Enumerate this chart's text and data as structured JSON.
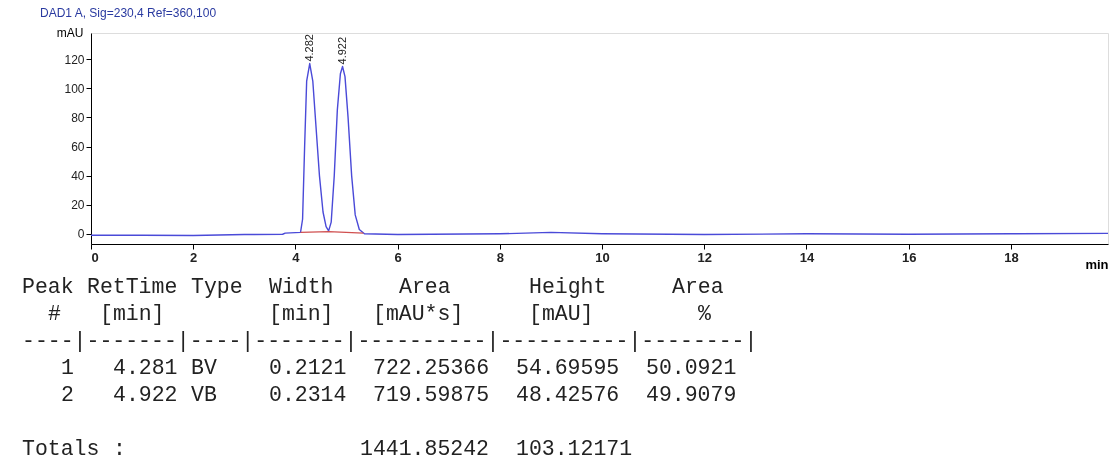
{
  "chart_data": {
    "type": "line",
    "title": "DAD1 A, Sig=230,4 Ref=360,100",
    "xlabel": "min",
    "ylabel": "mAU",
    "xlim": [
      0,
      19.9
    ],
    "xticks": [
      0,
      2,
      4,
      6,
      8,
      10,
      12,
      14,
      16,
      18
    ],
    "ylim": [
      -7,
      138
    ],
    "yticks": [
      0,
      20,
      40,
      60,
      80,
      100,
      120
    ],
    "grid": false,
    "series": [
      {
        "color": "#4a4ad8",
        "x": [
          0,
          1,
          2,
          3,
          3.75,
          3.8,
          4.1,
          4.14,
          4.18,
          4.22,
          4.28,
          4.34,
          4.4,
          4.47,
          4.54,
          4.6,
          4.65,
          4.7,
          4.76,
          4.82,
          4.88,
          4.922,
          4.97,
          5.03,
          5.1,
          5.17,
          5.25,
          5.35,
          6,
          8,
          9,
          10,
          12,
          14,
          16,
          18,
          19.9
        ],
        "values": [
          -1,
          -1,
          -1.2,
          -0.5,
          -0.3,
          0.5,
          1,
          10,
          60,
          105,
          117,
          105,
          75,
          40,
          15,
          5,
          2,
          8,
          40,
          85,
          110,
          115,
          108,
          80,
          40,
          13,
          3,
          0,
          -0.5,
          0,
          1,
          0,
          -0.5,
          0,
          -0.3,
          0,
          0.3
        ]
      },
      {
        "color": "#d05050",
        "x": [
          4.1,
          4.65,
          5.33
        ],
        "values": [
          1,
          1.5,
          0.5
        ]
      }
    ],
    "annotations": [
      {
        "text": "4.282",
        "x": 4.28,
        "y": 117
      },
      {
        "text": "4.922",
        "x": 4.922,
        "y": 115
      },
      "Peak RetTime Type  Width     Area      Height     Area",
      "  #   [min]        [min]   [mAU*s]     [mAU]        %",
      "----|-------|----|-------|----------|----------|--------|",
      "   1   4.281 BV    0.2121  722.25366  54.69595  50.0921",
      "   2   4.922 VB    0.2314  719.59875  48.42576  49.9079",
      "Totals :                  1441.85242  103.12171"
    ]
  }
}
